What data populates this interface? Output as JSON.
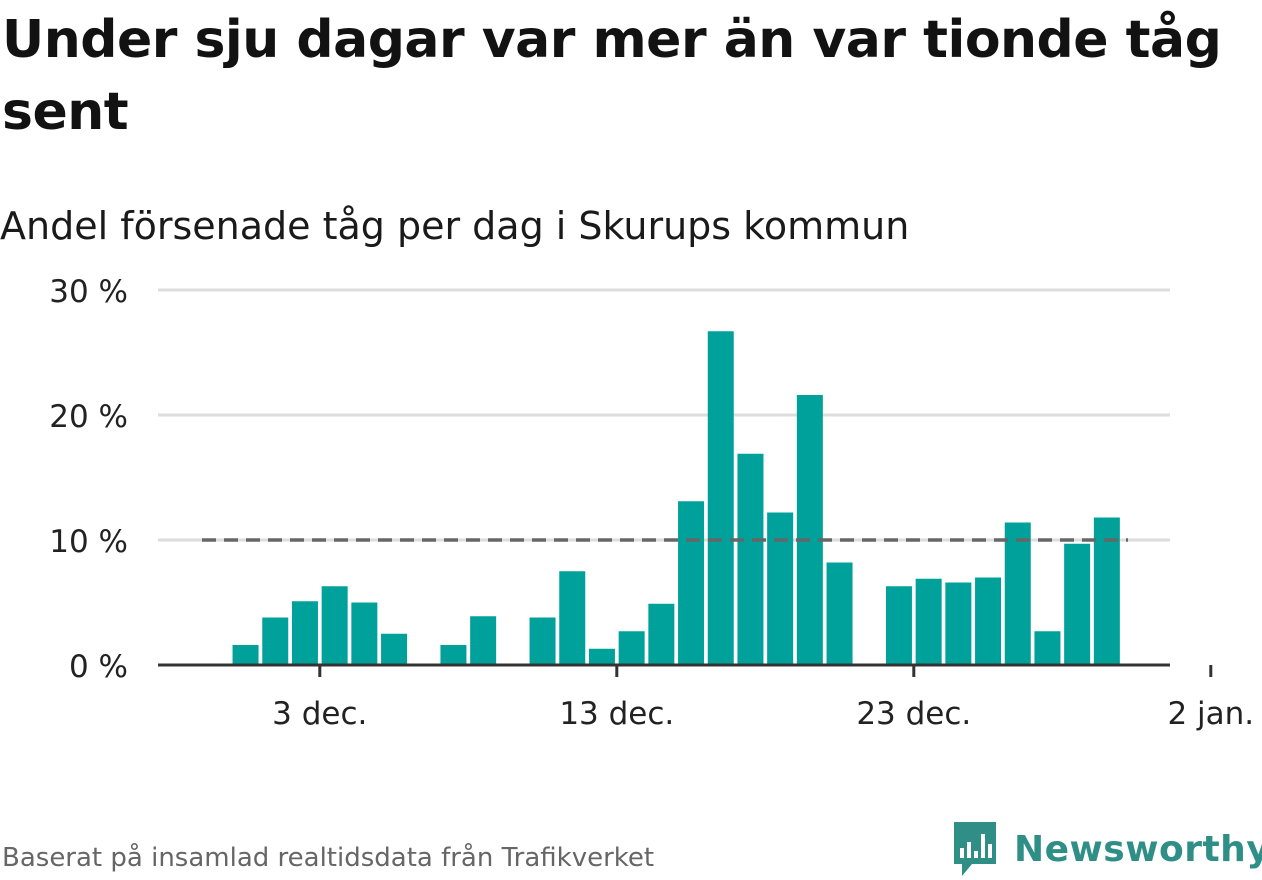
{
  "title": "Under sju dagar var mer än var tionde tåg sent",
  "subtitle": "Andel försenade tåg per dag i Skurups kommun",
  "footer": "Baserat på insamlad realtidsdata från Trafikverket",
  "brand": {
    "name": "Newsworthy",
    "color": "#2f8f87"
  },
  "colors": {
    "bar": "#00a19a",
    "reference_line": "#666666",
    "grid": "#dddddd"
  },
  "chart_data": {
    "type": "bar",
    "x_start": "2023-11-29",
    "dates": [
      "2023-11-29",
      "2023-11-30",
      "2023-12-01",
      "2023-12-02",
      "2023-12-03",
      "2023-12-04",
      "2023-12-05",
      "2023-12-06",
      "2023-12-07",
      "2023-12-08",
      "2023-12-09",
      "2023-12-10",
      "2023-12-11",
      "2023-12-12",
      "2023-12-13",
      "2023-12-14",
      "2023-12-15",
      "2023-12-16",
      "2023-12-17",
      "2023-12-18",
      "2023-12-19",
      "2023-12-20",
      "2023-12-21",
      "2023-12-22",
      "2023-12-23",
      "2023-12-24",
      "2023-12-25",
      "2023-12-26",
      "2023-12-27",
      "2023-12-28",
      "2023-12-29",
      "2023-12-30",
      "2023-12-31",
      "2024-01-01",
      "2024-01-02"
    ],
    "values": [
      null,
      1.6,
      3.8,
      5.1,
      6.3,
      5.0,
      2.5,
      null,
      1.6,
      3.9,
      null,
      3.8,
      7.5,
      1.3,
      2.7,
      4.9,
      13.1,
      26.7,
      16.9,
      12.2,
      21.6,
      8.2,
      null,
      6.3,
      6.9,
      6.6,
      7.0,
      11.4,
      2.7,
      9.7,
      11.8,
      null,
      null,
      null,
      null
    ],
    "reference_line": {
      "value": 10
    },
    "ylim": [
      0,
      30
    ],
    "y_ticks": [
      {
        "value": 0,
        "label": "0 %"
      },
      {
        "value": 10,
        "label": "10 %"
      },
      {
        "value": 20,
        "label": "20 %"
      },
      {
        "value": 30,
        "label": "30 %"
      }
    ],
    "x_ticks": [
      {
        "date": "2023-12-03",
        "label": "3 dec."
      },
      {
        "date": "2023-12-13",
        "label": "13 dec."
      },
      {
        "date": "2023-12-23",
        "label": "23 dec."
      },
      {
        "date": "2024-01-02",
        "label": "2 jan."
      }
    ],
    "grid": true,
    "legend": "none"
  }
}
